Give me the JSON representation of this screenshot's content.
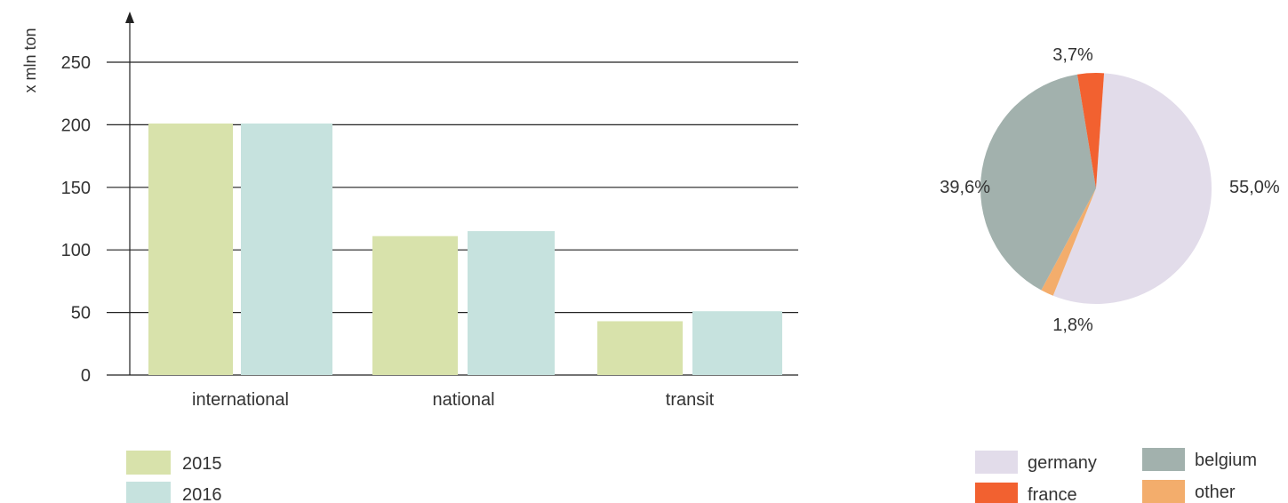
{
  "chart_data": [
    {
      "type": "bar",
      "title": "",
      "xlabel": "",
      "ylabel": "x mln ton",
      "ylim": [
        0,
        250
      ],
      "yticks": [
        0,
        50,
        100,
        150,
        200,
        250
      ],
      "grid": true,
      "legend_position": "bottom-left",
      "categories": [
        "international",
        "national",
        "transit"
      ],
      "series": [
        {
          "name": "2015",
          "color": "#d8e2ab",
          "values": [
            201,
            111,
            43
          ]
        },
        {
          "name": "2016",
          "color": "#c6e2de",
          "values": [
            201,
            115,
            51
          ]
        }
      ]
    },
    {
      "type": "pie",
      "title": "",
      "legend_position": "bottom-right",
      "slices": [
        {
          "name": "germany",
          "value": 55.0,
          "label": "55,0%",
          "color": "#e2dcea"
        },
        {
          "name": "other",
          "value": 1.8,
          "label": "1,8%",
          "color": "#f3ad6c"
        },
        {
          "name": "belgium",
          "value": 39.6,
          "label": "39,6%",
          "color": "#a2b1ad"
        },
        {
          "name": "france",
          "value": 3.7,
          "label": "3,7%",
          "color": "#f26130"
        }
      ],
      "legend_order": [
        "germany",
        "belgium",
        "france",
        "other"
      ]
    }
  ]
}
